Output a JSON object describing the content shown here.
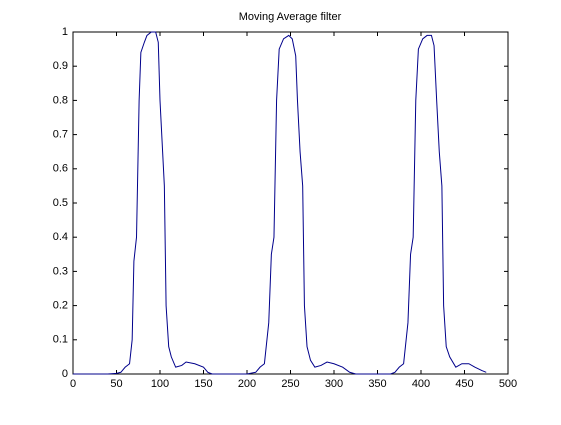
{
  "chart_data": {
    "type": "line",
    "title": "Moving Average filter",
    "color": "#00008b",
    "x": [
      0,
      20,
      40,
      50,
      55,
      60,
      65,
      68,
      70,
      73,
      76,
      78,
      82,
      85,
      90,
      95,
      98,
      100,
      103,
      105,
      107,
      110,
      113,
      118,
      125,
      130,
      140,
      150,
      155,
      160,
      180,
      200,
      210,
      215,
      220,
      225,
      228,
      231,
      234,
      237,
      242,
      248,
      252,
      256,
      258,
      261,
      264,
      266,
      269,
      273,
      278,
      285,
      292,
      300,
      310,
      318,
      325,
      345,
      365,
      370,
      375,
      380,
      385,
      388,
      391,
      394,
      397,
      402,
      407,
      412,
      415,
      418,
      421,
      424,
      426,
      429,
      433,
      440,
      447,
      455,
      462,
      470,
      475
    ],
    "values": [
      0,
      0,
      0,
      0.002,
      0.005,
      0.02,
      0.03,
      0.1,
      0.33,
      0.4,
      0.8,
      0.94,
      0.97,
      0.99,
      1.0,
      1.0,
      0.97,
      0.8,
      0.65,
      0.55,
      0.2,
      0.08,
      0.05,
      0.02,
      0.025,
      0.035,
      0.03,
      0.02,
      0.005,
      0,
      0,
      0,
      0.005,
      0.02,
      0.03,
      0.15,
      0.35,
      0.4,
      0.8,
      0.95,
      0.98,
      0.99,
      0.98,
      0.93,
      0.8,
      0.65,
      0.55,
      0.2,
      0.08,
      0.04,
      0.02,
      0.025,
      0.035,
      0.03,
      0.02,
      0.005,
      0,
      0,
      0,
      0.005,
      0.02,
      0.03,
      0.15,
      0.35,
      0.4,
      0.8,
      0.95,
      0.98,
      0.99,
      0.99,
      0.96,
      0.8,
      0.65,
      0.55,
      0.2,
      0.08,
      0.05,
      0.02,
      0.03,
      0.03,
      0.02,
      0.01,
      0.005
    ],
    "xlim": [
      0,
      500
    ],
    "ylim": [
      0,
      1
    ],
    "xticks": [
      0,
      50,
      100,
      150,
      200,
      250,
      300,
      350,
      400,
      450,
      500
    ],
    "yticks": [
      0,
      0.1,
      0.2,
      0.3,
      0.4,
      0.5,
      0.6,
      0.7,
      0.8,
      0.9,
      1
    ]
  }
}
